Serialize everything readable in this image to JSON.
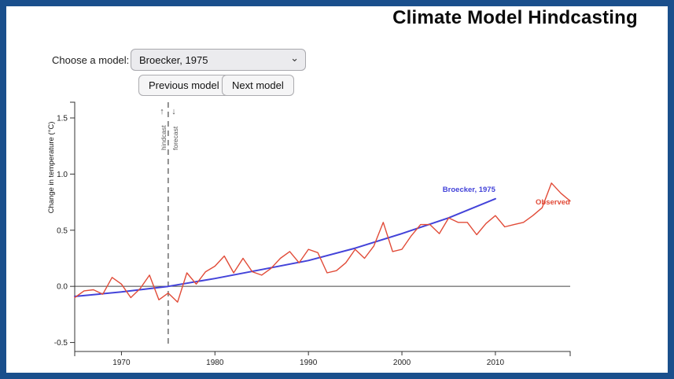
{
  "page": {
    "border_color": "#1a4f8c",
    "background": "#ffffff"
  },
  "header": {
    "title": "Climate Model Hindcasting"
  },
  "controls": {
    "choose_label": "Choose a model:",
    "select_value": "Broecker, 1975",
    "chevron_icon": "⌄",
    "prev_button": "Previous model",
    "next_button": "Next model"
  },
  "chart_data": {
    "type": "line",
    "title": "",
    "xlabel": "",
    "ylabel": "Change in temperature (°C)",
    "xlim": [
      1965,
      2018
    ],
    "ylim": [
      -0.58,
      1.64
    ],
    "x_ticks": [
      1970,
      1980,
      1990,
      2000,
      2010
    ],
    "y_ticks": [
      -0.5,
      0.0,
      0.5,
      1.0,
      1.5
    ],
    "grid": false,
    "zero_line": true,
    "legend_position": "inline-end-labels",
    "event_line": {
      "year": 1975,
      "color": "#777777",
      "style": "dashed",
      "left_label": "hindcast",
      "left_arrow": "↑",
      "right_label": "forecast",
      "right_arrow": "↓"
    },
    "series": [
      {
        "name": "Broecker, 1975",
        "color": "#4343d9",
        "width": 2,
        "x": [
          1965,
          1970,
          1975,
          1980,
          1985,
          1990,
          1995,
          2000,
          2005,
          2010
        ],
        "values": [
          -0.09,
          -0.05,
          0.0,
          0.07,
          0.15,
          0.23,
          0.34,
          0.47,
          0.61,
          0.78
        ],
        "label": {
          "year": 2010,
          "value": 0.84,
          "anchor": "end"
        }
      },
      {
        "name": "Observed",
        "color": "#e14b38",
        "width": 1.4,
        "x": [
          1965,
          1966,
          1967,
          1968,
          1969,
          1970,
          1971,
          1972,
          1973,
          1974,
          1975,
          1976,
          1977,
          1978,
          1979,
          1980,
          1981,
          1982,
          1983,
          1984,
          1985,
          1986,
          1987,
          1988,
          1989,
          1990,
          1991,
          1992,
          1993,
          1994,
          1995,
          1996,
          1997,
          1998,
          1999,
          2000,
          2001,
          2002,
          2003,
          2004,
          2005,
          2006,
          2007,
          2008,
          2009,
          2010,
          2011,
          2012,
          2013,
          2014,
          2015,
          2016,
          2017,
          2018
        ],
        "values": [
          -0.1,
          -0.04,
          -0.03,
          -0.07,
          0.08,
          0.02,
          -0.1,
          -0.02,
          0.1,
          -0.12,
          -0.06,
          -0.14,
          0.12,
          0.02,
          0.13,
          0.18,
          0.27,
          0.12,
          0.25,
          0.13,
          0.1,
          0.16,
          0.25,
          0.31,
          0.21,
          0.33,
          0.3,
          0.12,
          0.14,
          0.21,
          0.33,
          0.25,
          0.36,
          0.57,
          0.31,
          0.33,
          0.45,
          0.55,
          0.55,
          0.47,
          0.61,
          0.57,
          0.57,
          0.46,
          0.56,
          0.63,
          0.53,
          0.55,
          0.57,
          0.63,
          0.7,
          0.92,
          0.83,
          0.76
        ],
        "label": {
          "year": 2014.3,
          "value": 0.73,
          "anchor": "start"
        }
      }
    ]
  }
}
